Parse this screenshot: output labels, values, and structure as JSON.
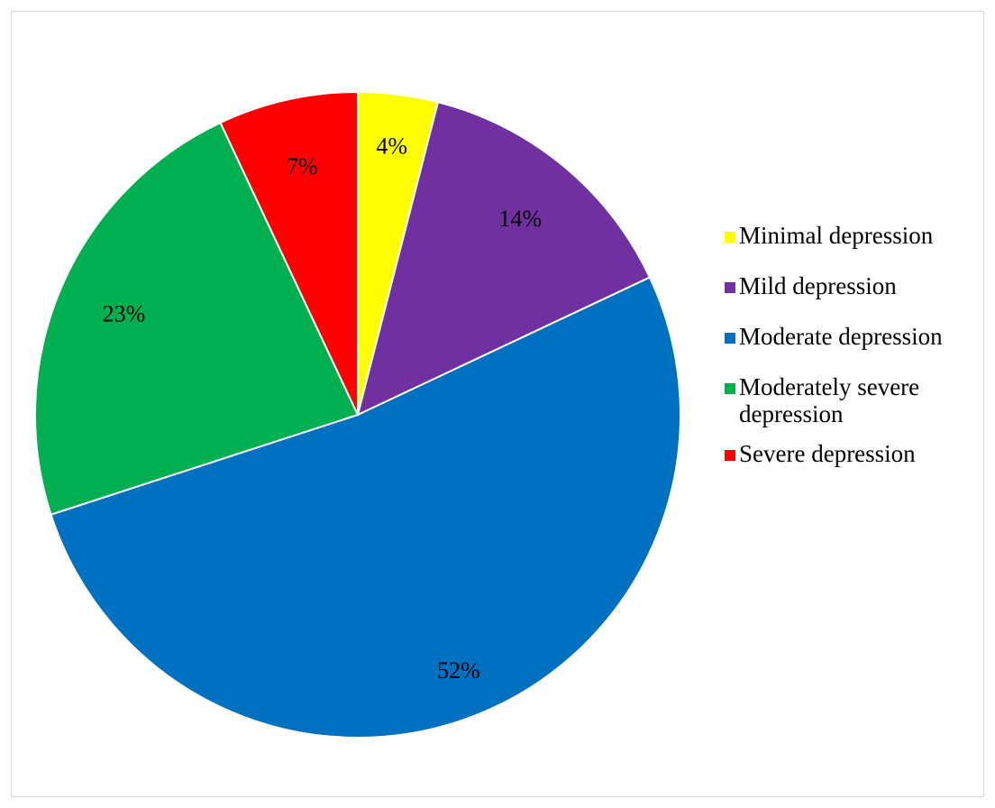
{
  "chart_data": {
    "type": "pie",
    "title": "",
    "categories": [
      "Minimal depression",
      "Mild depression",
      "Moderate depression",
      "Moderately severe depression",
      "Severe depression"
    ],
    "values": [
      4,
      14,
      52,
      23,
      7
    ],
    "value_labels": [
      "4%",
      "14%",
      "52%",
      "23%",
      "7%"
    ],
    "colors": [
      "#FFFF00",
      "#7030A0",
      "#0070C0",
      "#00B050",
      "#FF0000"
    ],
    "legend_position": "right",
    "start_angle": "top, clockwise"
  },
  "legend": {
    "items": [
      {
        "label": "Minimal depression",
        "color": "#FFFF00"
      },
      {
        "label": "Mild depression",
        "color": "#7030A0"
      },
      {
        "label": "Moderate depression",
        "color": "#0070C0"
      },
      {
        "label": "Moderately severe depression",
        "color": "#00B050"
      },
      {
        "label": "Severe depression",
        "color": "#FF0000"
      }
    ]
  }
}
